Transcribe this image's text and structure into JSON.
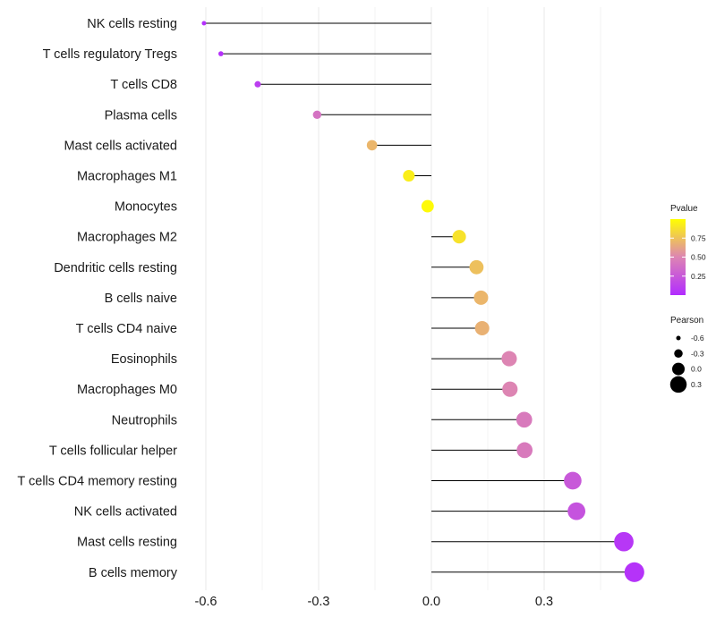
{
  "chart_data": {
    "type": "lollipop",
    "title": "",
    "xlabel": "",
    "ylabel": "",
    "xlim": [
      -0.6,
      0.55
    ],
    "x_ticks": [
      -0.6,
      -0.3,
      0.0,
      0.3
    ],
    "x_tick_labels": [
      "-0.6",
      "-0.3",
      "0.0",
      "0.3"
    ],
    "grid": true,
    "points": [
      {
        "label": "NK cells resting",
        "value": -0.605,
        "pvalue": 0.02
      },
      {
        "label": "T cells regulatory  Tregs",
        "value": -0.56,
        "pvalue": 0.03
      },
      {
        "label": "T cells CD8",
        "value": -0.462,
        "pvalue": 0.1
      },
      {
        "label": "Plasma cells",
        "value": -0.304,
        "pvalue": 0.4
      },
      {
        "label": "Mast cells activated",
        "value": -0.158,
        "pvalue": 0.7
      },
      {
        "label": "Macrophages M1",
        "value": -0.06,
        "pvalue": 0.93
      },
      {
        "label": "Monocytes",
        "value": -0.01,
        "pvalue": 0.98
      },
      {
        "label": "Macrophages M2",
        "value": 0.074,
        "pvalue": 0.88
      },
      {
        "label": "Dendritic cells resting",
        "value": 0.12,
        "pvalue": 0.74
      },
      {
        "label": "B cells naive",
        "value": 0.132,
        "pvalue": 0.7
      },
      {
        "label": "T cells CD4 naive",
        "value": 0.135,
        "pvalue": 0.68
      },
      {
        "label": "Eosinophils",
        "value": 0.207,
        "pvalue": 0.5
      },
      {
        "label": "Macrophages M0",
        "value": 0.209,
        "pvalue": 0.5
      },
      {
        "label": "Neutrophils",
        "value": 0.247,
        "pvalue": 0.44
      },
      {
        "label": "T cells follicular helper",
        "value": 0.248,
        "pvalue": 0.44
      },
      {
        "label": "T cells CD4 memory resting",
        "value": 0.376,
        "pvalue": 0.25
      },
      {
        "label": "NK cells activated",
        "value": 0.386,
        "pvalue": 0.22
      },
      {
        "label": "Mast cells resting",
        "value": 0.512,
        "pvalue": 0.06
      },
      {
        "label": "B cells memory",
        "value": 0.54,
        "pvalue": 0.04
      }
    ],
    "legend": {
      "pvalue": {
        "title": "Pvalue",
        "ticks": [
          0.75,
          0.5,
          0.25
        ],
        "tick_labels": [
          "0.75",
          "0.50",
          "0.25"
        ],
        "range": [
          0.0,
          1.0
        ],
        "color_low": "#b22cff",
        "color_mid": "#dd85b3",
        "color_high": "#ffff00"
      },
      "pearson": {
        "title": "Pearson",
        "values": [
          -0.6,
          -0.3,
          0.0,
          0.3
        ],
        "labels": [
          "-0.6",
          "-0.3",
          "0.0",
          "0.3"
        ]
      },
      "placement": "right"
    },
    "colors": {
      "stem": "#000000",
      "grid": "#ebebeb"
    }
  }
}
